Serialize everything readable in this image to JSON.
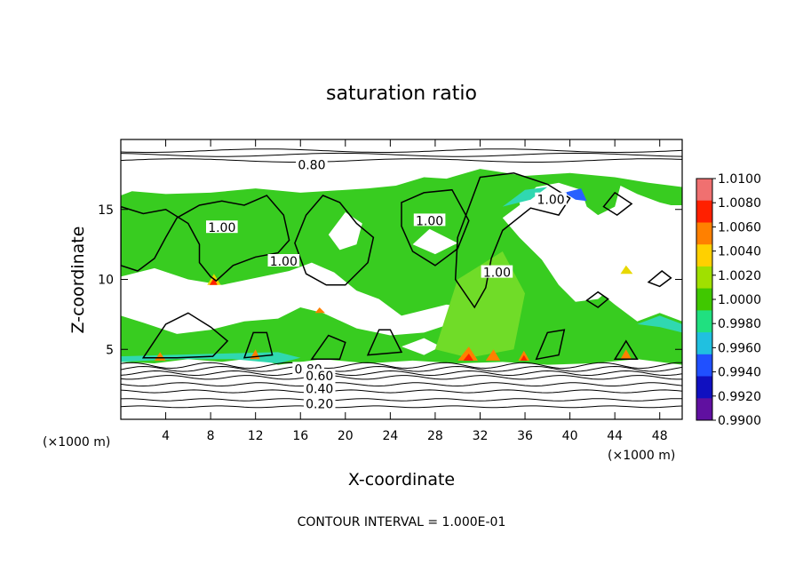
{
  "chart_data": {
    "type": "heatmap",
    "title": "saturation ratio",
    "xlabel": "X-coordinate",
    "ylabel": "Z-coordinate",
    "x_unit_left": "(×1000 m)",
    "x_unit_right": "(×1000 m)",
    "xlim": [
      0,
      50
    ],
    "ylim": [
      0,
      20
    ],
    "x_ticks": [
      4,
      8,
      12,
      16,
      20,
      24,
      28,
      32,
      36,
      40,
      44,
      48
    ],
    "y_ticks": [
      5,
      10,
      15
    ],
    "footer": "CONTOUR INTERVAL = 1.000E-01",
    "colorbar": {
      "labels": [
        "1.0100",
        "1.0080",
        "1.0060",
        "1.0040",
        "1.0020",
        "1.0000",
        "0.9980",
        "0.9960",
        "0.9940",
        "0.9920",
        "0.9900"
      ],
      "colors": [
        "#f07070",
        "#ff2000",
        "#ff8000",
        "#ffd000",
        "#a0e000",
        "#40c800",
        "#20e080",
        "#20c0e0",
        "#2050ff",
        "#1010c0",
        "#6010a0"
      ]
    },
    "contour_labels": [
      {
        "text": "0.80",
        "x": 17.0,
        "z": 18.2
      },
      {
        "text": "1.00",
        "x": 9.0,
        "z": 13.7
      },
      {
        "text": "1.00",
        "x": 14.5,
        "z": 11.3
      },
      {
        "text": "1.00",
        "x": 27.5,
        "z": 14.2
      },
      {
        "text": "1.00",
        "x": 33.5,
        "z": 10.5
      },
      {
        "text": "1.00",
        "x": 38.3,
        "z": 15.7
      },
      {
        "text": "0.80",
        "x": 16.7,
        "z": 3.6
      },
      {
        "text": "0.60",
        "x": 17.7,
        "z": 3.1
      },
      {
        "text": "0.40",
        "x": 17.7,
        "z": 2.2
      },
      {
        "text": "0.20",
        "x": 17.7,
        "z": 1.1
      }
    ],
    "field_colors": {
      "green": "#38cc20",
      "light_green": "#70dc28",
      "cyan": "#30d8b0",
      "blue": "#2860ff",
      "yellow": "#e8d800",
      "orange": "#ff8000",
      "red": "#ff2000",
      "contour": "#000000"
    }
  }
}
